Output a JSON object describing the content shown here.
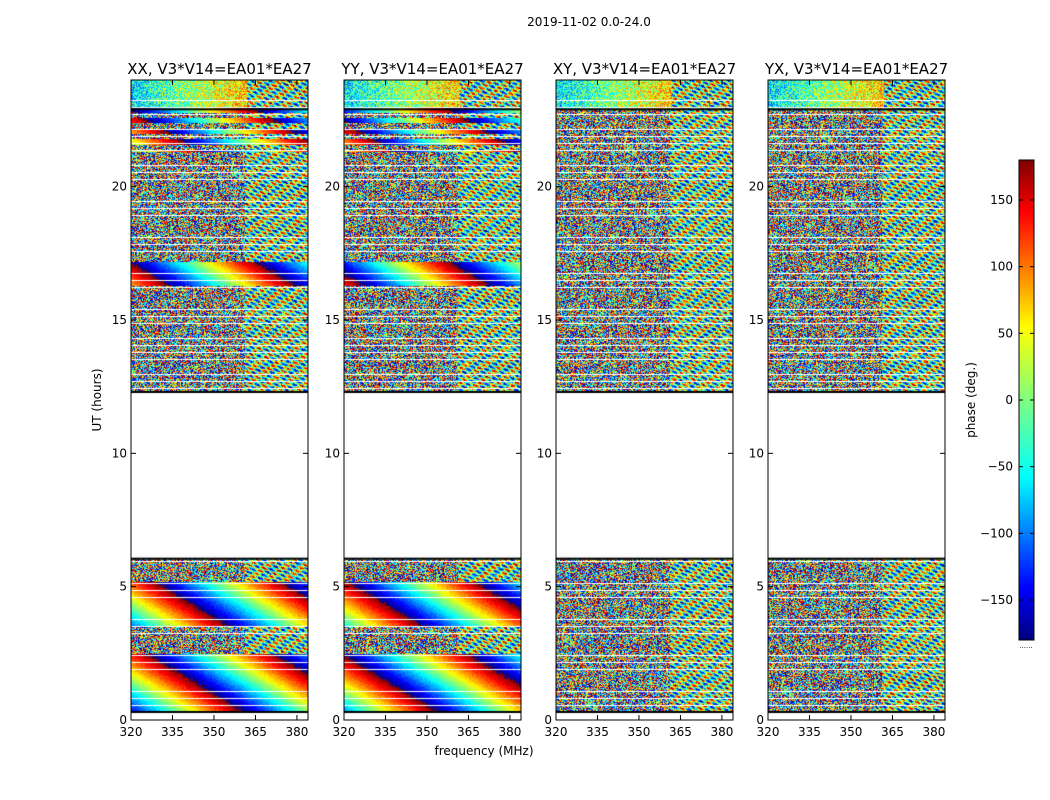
{
  "chart_data": {
    "type": "heatmap",
    "suptitle": "2019-11-02 0.0-24.0",
    "xlabel": "frequency (MHz)",
    "ylabel": "UT (hours)",
    "xlim": [
      320,
      384
    ],
    "ylim": [
      0,
      24
    ],
    "xticks": [
      320,
      335,
      350,
      365,
      380
    ],
    "yticks": [
      0,
      5,
      10,
      15,
      20
    ],
    "panels": [
      {
        "title": "XX, V3*V14=EA01*EA27",
        "pattern": "parallel"
      },
      {
        "title": "YY, V3*V14=EA01*EA27",
        "pattern": "parallel"
      },
      {
        "title": "XY, V3*V14=EA01*EA27",
        "pattern": "cross"
      },
      {
        "title": "YX, V3*V14=EA01*EA27",
        "pattern": "cross"
      }
    ],
    "colorbar": {
      "label": "phase (deg.)",
      "range": [
        -180,
        180
      ],
      "ticks": [
        -150,
        -100,
        -50,
        0,
        50,
        100,
        150
      ],
      "tick_labels": [
        "−150",
        "−100",
        "−50",
        "0",
        "50",
        "100",
        "150"
      ],
      "colormap": "jet",
      "footer": "......"
    },
    "no_data_band_hours": [
      6.1,
      12.3
    ],
    "data_blocks_hours": [
      [
        0.3,
        6.1
      ],
      [
        12.3,
        24.0
      ]
    ]
  }
}
